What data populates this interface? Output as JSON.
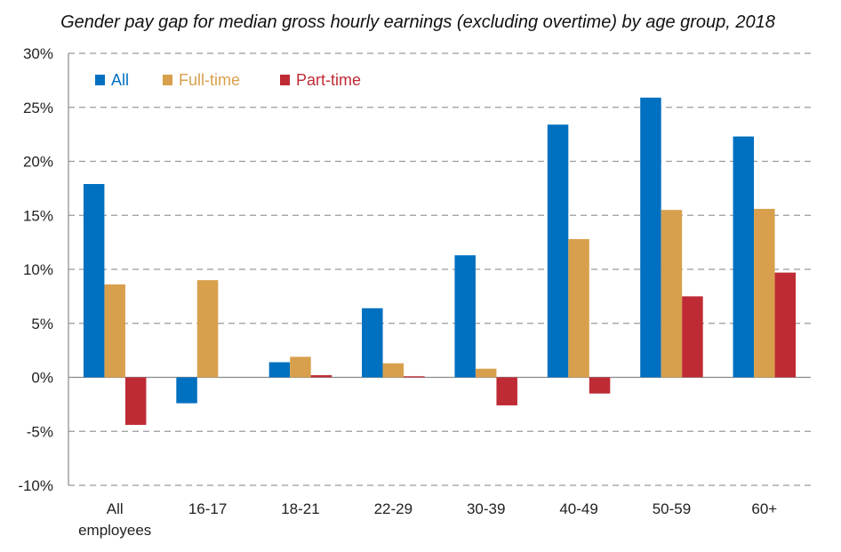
{
  "chart_data": {
    "type": "bar",
    "title": "Gender pay gap for median gross hourly earnings (excluding overtime) by age group, 2018",
    "xlabel": "",
    "ylabel": "",
    "ylim": [
      -10,
      30
    ],
    "yticks": [
      -10,
      -5,
      0,
      5,
      10,
      15,
      20,
      25,
      30
    ],
    "ytick_labels": [
      "-10%",
      "-5%",
      "0%",
      "5%",
      "10%",
      "15%",
      "20%",
      "25%",
      "30%"
    ],
    "grid": true,
    "legend_position": "top-left",
    "categories": [
      [
        "All",
        "employees"
      ],
      [
        "16-17"
      ],
      [
        "18-21"
      ],
      [
        "22-29"
      ],
      [
        "30-39"
      ],
      [
        "40-49"
      ],
      [
        "50-59"
      ],
      [
        "60+"
      ]
    ],
    "series": [
      {
        "name": "All",
        "color": "#0070c0",
        "values": [
          17.9,
          -2.4,
          1.4,
          6.4,
          11.3,
          23.4,
          25.9,
          22.3
        ]
      },
      {
        "name": "Full-time",
        "color": "#d8a04c",
        "values": [
          8.6,
          9.0,
          1.9,
          1.3,
          0.8,
          12.8,
          15.5,
          15.6
        ]
      },
      {
        "name": "Part-time",
        "color": "#bf2b35",
        "values": [
          -4.4,
          null,
          0.2,
          0.1,
          -2.6,
          -1.5,
          7.5,
          9.7
        ]
      }
    ]
  }
}
